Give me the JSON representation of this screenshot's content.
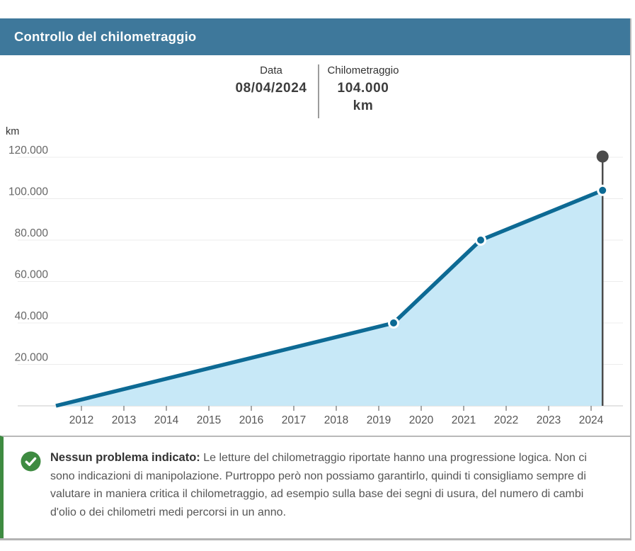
{
  "header": {
    "title": "Controllo del chilometraggio",
    "bg_color": "#3e789b"
  },
  "tooltip": {
    "date_label": "Data",
    "date_value": "08/04/2024",
    "mileage_label": "Chilometraggio",
    "mileage_value": "104.000 km"
  },
  "chart_data": {
    "type": "area",
    "title": "Controllo del chilometraggio",
    "ylabel": "km",
    "ylim": [
      0,
      130000
    ],
    "xlim": [
      2010.5,
      2024.6
    ],
    "grid": true,
    "y_ticks": [
      {
        "value": 20000,
        "label": "20.000"
      },
      {
        "value": 40000,
        "label": "40.000"
      },
      {
        "value": 60000,
        "label": "60.000"
      },
      {
        "value": 80000,
        "label": "80.000"
      },
      {
        "value": 100000,
        "label": "100.000"
      },
      {
        "value": 120000,
        "label": "120.000"
      }
    ],
    "x_ticks": [
      {
        "value": 2012,
        "label": "2012"
      },
      {
        "value": 2013,
        "label": "2013"
      },
      {
        "value": 2014,
        "label": "2014"
      },
      {
        "value": 2015,
        "label": "2015"
      },
      {
        "value": 2016,
        "label": "2016"
      },
      {
        "value": 2017,
        "label": "2017"
      },
      {
        "value": 2018,
        "label": "2018"
      },
      {
        "value": 2019,
        "label": "2019"
      },
      {
        "value": 2020,
        "label": "2020"
      },
      {
        "value": 2021,
        "label": "2021"
      },
      {
        "value": 2022,
        "label": "2022"
      },
      {
        "value": 2023,
        "label": "2023"
      },
      {
        "value": 2024,
        "label": "2024"
      }
    ],
    "series": [
      {
        "name": "Chilometraggio",
        "points": [
          {
            "x": 2011.4,
            "y": 0,
            "dot": false
          },
          {
            "x": 2019.35,
            "y": 40000,
            "dot": true
          },
          {
            "x": 2021.4,
            "y": 80000,
            "dot": true
          },
          {
            "x": 2024.27,
            "y": 104000,
            "dot": true
          }
        ]
      }
    ],
    "selected_marker": {
      "x": 2024.27,
      "date": "08/04/2024",
      "value": 104000
    },
    "colors": {
      "line": "#0d6a94",
      "fill": "#c7e8f7",
      "dot_ring": "#ffffff",
      "marker": "#4b4b4b",
      "gridline": "#ececec",
      "baseline": "#dcdcdc",
      "tick": "#8a8a8a",
      "axis_text": "#666666",
      "x_text": "#555555"
    }
  },
  "note": {
    "icon": "check-circle-icon",
    "accent_color": "#3e8b41",
    "title": "Nessun problema indicato:",
    "body": " Le letture del chilometraggio riportate hanno una progressione logica. Non ci sono indicazioni di manipolazione. Purtroppo però non possiamo garantirlo, quindi ti consigliamo sempre di valutare in maniera critica il chilometraggio, ad esempio sulla base dei segni di usura, del numero di cambi d'olio o dei chilometri medi percorsi in un anno."
  }
}
